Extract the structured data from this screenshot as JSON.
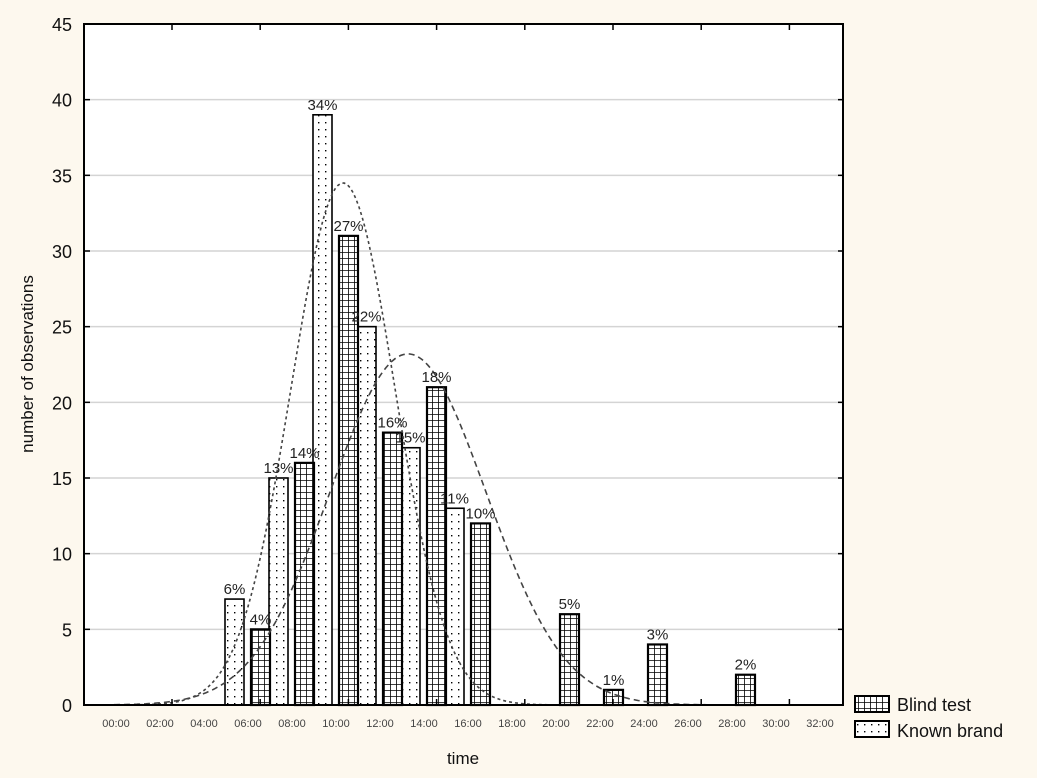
{
  "chart_data": {
    "type": "bar",
    "title": "",
    "xlabel": "time",
    "ylabel": "number of observations",
    "ylim": [
      0,
      45
    ],
    "yticks": [
      0,
      5,
      10,
      15,
      20,
      25,
      30,
      35,
      40,
      45
    ],
    "xticks": [
      "00:00",
      "02:00",
      "04:00",
      "06:00",
      "08:00",
      "10:00",
      "12:00",
      "14:00",
      "16:00",
      "18:00",
      "20:00",
      "22:00",
      "24:00",
      "26:00",
      "28:00",
      "30:00",
      "32:00"
    ],
    "grid": true,
    "legend_position": "bottom-right, outside plot",
    "categories": [
      "05:00-07:00",
      "07:00-09:00",
      "09:00-11:00",
      "11:00-13:00",
      "13:00-15:00",
      "15:00-17:00",
      "17:00-19:00",
      "19:00-21:00",
      "21:00-23:00",
      "25:00-27:00"
    ],
    "series": [
      {
        "name": "Blind test",
        "pattern": "grid",
        "bars": [
          {
            "bin": "06:00-08:00",
            "value": 5,
            "label": "4%"
          },
          {
            "bin": "08:00-10:00",
            "value": 16,
            "label": "14%"
          },
          {
            "bin": "10:00-12:00",
            "value": 31,
            "label": "27%"
          },
          {
            "bin": "12:00-14:00",
            "value": 18,
            "label": "16%"
          },
          {
            "bin": "14:00-16:00",
            "value": 21,
            "label": "18%"
          },
          {
            "bin": "16:00-18:00",
            "value": 12,
            "label": "10%"
          },
          {
            "bin": "18:00-20:00",
            "value": 6,
            "label": "5%"
          },
          {
            "bin": "20:00-22:00",
            "value": 1,
            "label": "1%"
          },
          {
            "bin": "22:00-24:00",
            "value": 4,
            "label": "3%"
          },
          {
            "bin": "26:00-28:00",
            "value": 2,
            "label": "2%"
          }
        ],
        "normal_fit": {
          "mean_time": "13:30",
          "peak_value": 23.2,
          "style": "dashed"
        }
      },
      {
        "name": "Known brand",
        "pattern": "dots",
        "bars": [
          {
            "bin": "04:00-06:00",
            "value": 7,
            "label": "6%"
          },
          {
            "bin": "06:00-08:00",
            "value": 15,
            "label": "13%"
          },
          {
            "bin": "08:00-10:00",
            "value": 39,
            "label": "34%"
          },
          {
            "bin": "10:00-12:00",
            "value": 25,
            "label": "22%"
          },
          {
            "bin": "12:00-14:00",
            "value": 17,
            "label": "15%"
          },
          {
            "bin": "14:00-16:00",
            "value": 13,
            "label": "11%"
          }
        ],
        "normal_fit": {
          "mean_time": "10:30",
          "peak_value": 34.5,
          "style": "dotted"
        }
      }
    ]
  },
  "legend": {
    "items": [
      {
        "label": "Blind test"
      },
      {
        "label": "Known brand"
      }
    ]
  },
  "axes": {
    "x_title": "time",
    "y_title": "number of observations"
  }
}
